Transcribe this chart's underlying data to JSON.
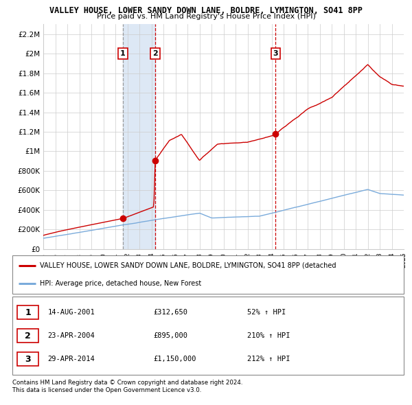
{
  "title": "VALLEY HOUSE, LOWER SANDY DOWN LANE, BOLDRE, LYMINGTON, SO41 8PP",
  "subtitle": "Price paid vs. HM Land Registry's House Price Index (HPI)",
  "x_start_year": 1995,
  "x_end_year": 2025,
  "ylim": [
    0,
    2300000
  ],
  "yticks": [
    0,
    200000,
    400000,
    600000,
    800000,
    1000000,
    1200000,
    1400000,
    1600000,
    1800000,
    2000000,
    2200000
  ],
  "ytick_labels": [
    "£0",
    "£200K",
    "£400K",
    "£600K",
    "£800K",
    "£1M",
    "£1.2M",
    "£1.4M",
    "£1.6M",
    "£1.8M",
    "£2M",
    "£2.2M"
  ],
  "sales": [
    {
      "year": 2001.62,
      "price": 312650,
      "label": "1",
      "date": "14-AUG-2001",
      "pct": "52%",
      "vline_color": "#999999",
      "vline_style": "--"
    },
    {
      "year": 2004.31,
      "price": 895000,
      "label": "2",
      "date": "23-APR-2004",
      "pct": "210%",
      "vline_color": "#cc0000",
      "vline_style": "--"
    },
    {
      "year": 2014.33,
      "price": 1150000,
      "label": "3",
      "date": "29-APR-2014",
      "pct": "212%",
      "vline_color": "#cc0000",
      "vline_style": "--"
    }
  ],
  "shade_between": [
    0,
    1
  ],
  "shade_color": "#dde8f5",
  "red_line_color": "#cc0000",
  "blue_line_color": "#7aabdb",
  "grid_color": "#cccccc",
  "bg_color": "#ffffff",
  "legend_label_red": "VALLEY HOUSE, LOWER SANDY DOWN LANE, BOLDRE, LYMINGTON, SO41 8PP (detached",
  "legend_label_blue": "HPI: Average price, detached house, New Forest",
  "footer1": "Contains HM Land Registry data © Crown copyright and database right 2024.",
  "footer2": "This data is licensed under the Open Government Licence v3.0.",
  "table_rows": [
    {
      "num": "1",
      "date": "14-AUG-2001",
      "price": "£312,650",
      "pct": "52% ↑ HPI"
    },
    {
      "num": "2",
      "date": "23-APR-2004",
      "price": "£895,000",
      "pct": "210% ↑ HPI"
    },
    {
      "num": "3",
      "date": "29-APR-2014",
      "price": "£1,150,000",
      "pct": "212% ↑ HPI"
    }
  ]
}
